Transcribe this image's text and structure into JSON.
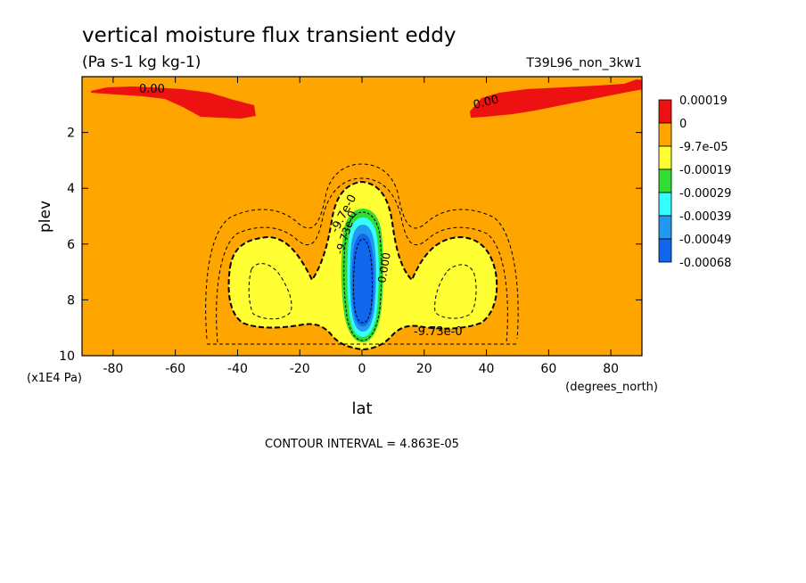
{
  "chart_data": {
    "type": "heatmap",
    "title": "vertical moisture flux transient eddy",
    "units": "(Pa s-1 kg kg-1)",
    "dataset": "T39L96_non_3kw1",
    "xlabel": "lat",
    "x_units": "(degrees_north)",
    "ylabel": "plev",
    "y_units": "(x1E4 Pa)",
    "xlim": [
      -90,
      90
    ],
    "ylim": [
      10,
      0
    ],
    "x_ticks": [
      "-80",
      "-60",
      "-40",
      "-20",
      "0",
      "20",
      "40",
      "60",
      "80"
    ],
    "x_tick_values": [
      -80,
      -60,
      -40,
      -20,
      0,
      20,
      40,
      60,
      80
    ],
    "y_ticks": [
      "2",
      "4",
      "6",
      "8",
      "10"
    ],
    "y_tick_values": [
      2,
      4,
      6,
      8,
      10
    ],
    "footer": "CONTOUR INTERVAL = 4.863E-05",
    "contour_labels": [
      "0.00",
      "0.00",
      "-9.7e-0",
      "-9.73e-0",
      "0.000",
      "-9.73e-0"
    ],
    "colorbar": [
      {
        "label": "0.00019",
        "color": "#ee1111"
      },
      {
        "label": "0",
        "color": "#ffa500"
      },
      {
        "label": "-9.7e-05",
        "color": "#ffff33"
      },
      {
        "label": "-0.00019",
        "color": "#33dd33"
      },
      {
        "label": "-0.00029",
        "color": "#33ffff"
      },
      {
        "label": "-0.00039",
        "color": "#2299ee"
      },
      {
        "label": "-0.00049",
        "color": "#1166ee"
      },
      {
        "label": "-0.00068",
        "color": ""
      }
    ]
  }
}
